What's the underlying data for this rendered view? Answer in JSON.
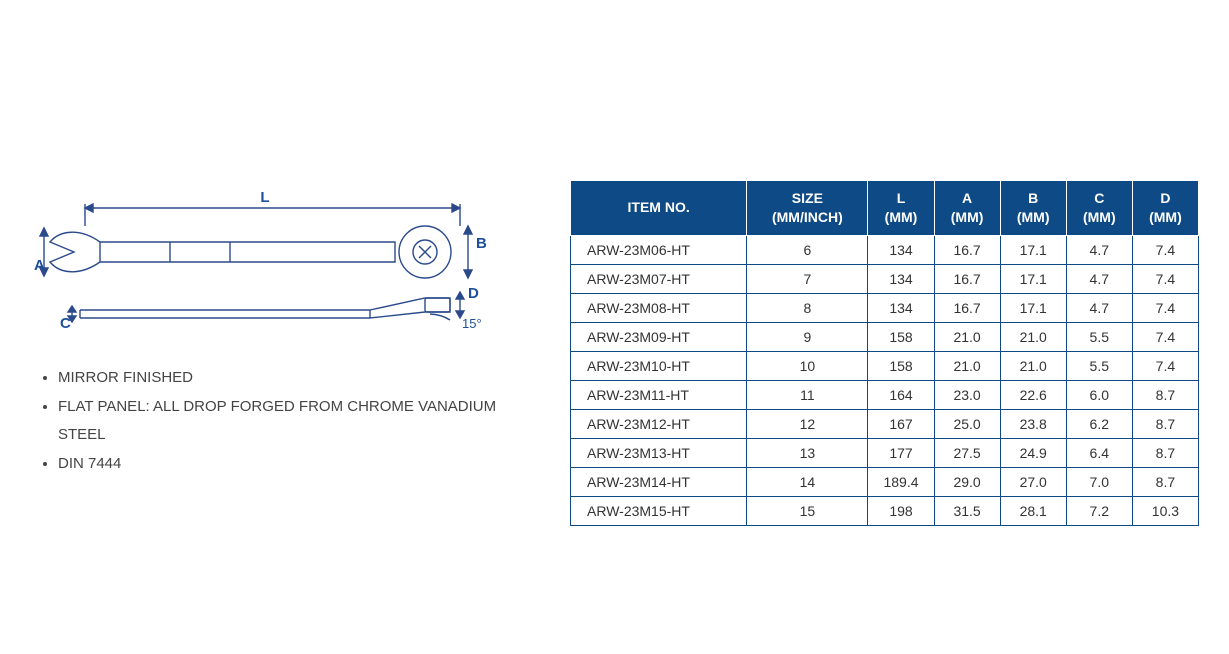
{
  "colors": {
    "header_bg": "#0e4a86",
    "header_text": "#ffffff",
    "border": "#0e4a86",
    "text": "#333333",
    "body_bg": "#ffffff",
    "diagram_stroke": "#2b4a8b",
    "diagram_label": "#1e4f9a"
  },
  "diagram": {
    "labels": {
      "L": "L",
      "A": "A",
      "B": "B",
      "C": "C",
      "D": "D",
      "angle": "15°"
    }
  },
  "features": [
    "MIRROR FINISHED",
    "FLAT PANEL: ALL DROP FORGED FROM CHROME VANADIUM STEEL",
    "DIN 7444"
  ],
  "table": {
    "columns": [
      {
        "key": "item",
        "line1": "ITEM NO.",
        "line2": "",
        "cls": "col-item"
      },
      {
        "key": "size",
        "line1": "SIZE",
        "line2": "(MM/INCH)",
        "cls": "col-size"
      },
      {
        "key": "L",
        "line1": "L",
        "line2": "(MM)",
        "cls": "col-dim"
      },
      {
        "key": "A",
        "line1": "A",
        "line2": "(MM)",
        "cls": "col-dim"
      },
      {
        "key": "B",
        "line1": "B",
        "line2": "(MM)",
        "cls": "col-dim"
      },
      {
        "key": "C",
        "line1": "C",
        "line2": "(MM)",
        "cls": "col-dim"
      },
      {
        "key": "D",
        "line1": "D",
        "line2": "(MM)",
        "cls": "col-dim"
      }
    ],
    "rows": [
      {
        "item": "ARW-23M06-HT",
        "size": "6",
        "L": "134",
        "A": "16.7",
        "B": "17.1",
        "C": "4.7",
        "D": "7.4"
      },
      {
        "item": "ARW-23M07-HT",
        "size": "7",
        "L": "134",
        "A": "16.7",
        "B": "17.1",
        "C": "4.7",
        "D": "7.4"
      },
      {
        "item": "ARW-23M08-HT",
        "size": "8",
        "L": "134",
        "A": "16.7",
        "B": "17.1",
        "C": "4.7",
        "D": "7.4"
      },
      {
        "item": "ARW-23M09-HT",
        "size": "9",
        "L": "158",
        "A": "21.0",
        "B": "21.0",
        "C": "5.5",
        "D": "7.4"
      },
      {
        "item": "ARW-23M10-HT",
        "size": "10",
        "L": "158",
        "A": "21.0",
        "B": "21.0",
        "C": "5.5",
        "D": "7.4"
      },
      {
        "item": "ARW-23M11-HT",
        "size": "11",
        "L": "164",
        "A": "23.0",
        "B": "22.6",
        "C": "6.0",
        "D": "8.7"
      },
      {
        "item": "ARW-23M12-HT",
        "size": "12",
        "L": "167",
        "A": "25.0",
        "B": "23.8",
        "C": "6.2",
        "D": "8.7"
      },
      {
        "item": "ARW-23M13-HT",
        "size": "13",
        "L": "177",
        "A": "27.5",
        "B": "24.9",
        "C": "6.4",
        "D": "8.7"
      },
      {
        "item": "ARW-23M14-HT",
        "size": "14",
        "L": "189.4",
        "A": "29.0",
        "B": "27.0",
        "C": "7.0",
        "D": "8.7"
      },
      {
        "item": "ARW-23M15-HT",
        "size": "15",
        "L": "198",
        "A": "31.5",
        "B": "28.1",
        "C": "7.2",
        "D": "10.3"
      }
    ]
  }
}
